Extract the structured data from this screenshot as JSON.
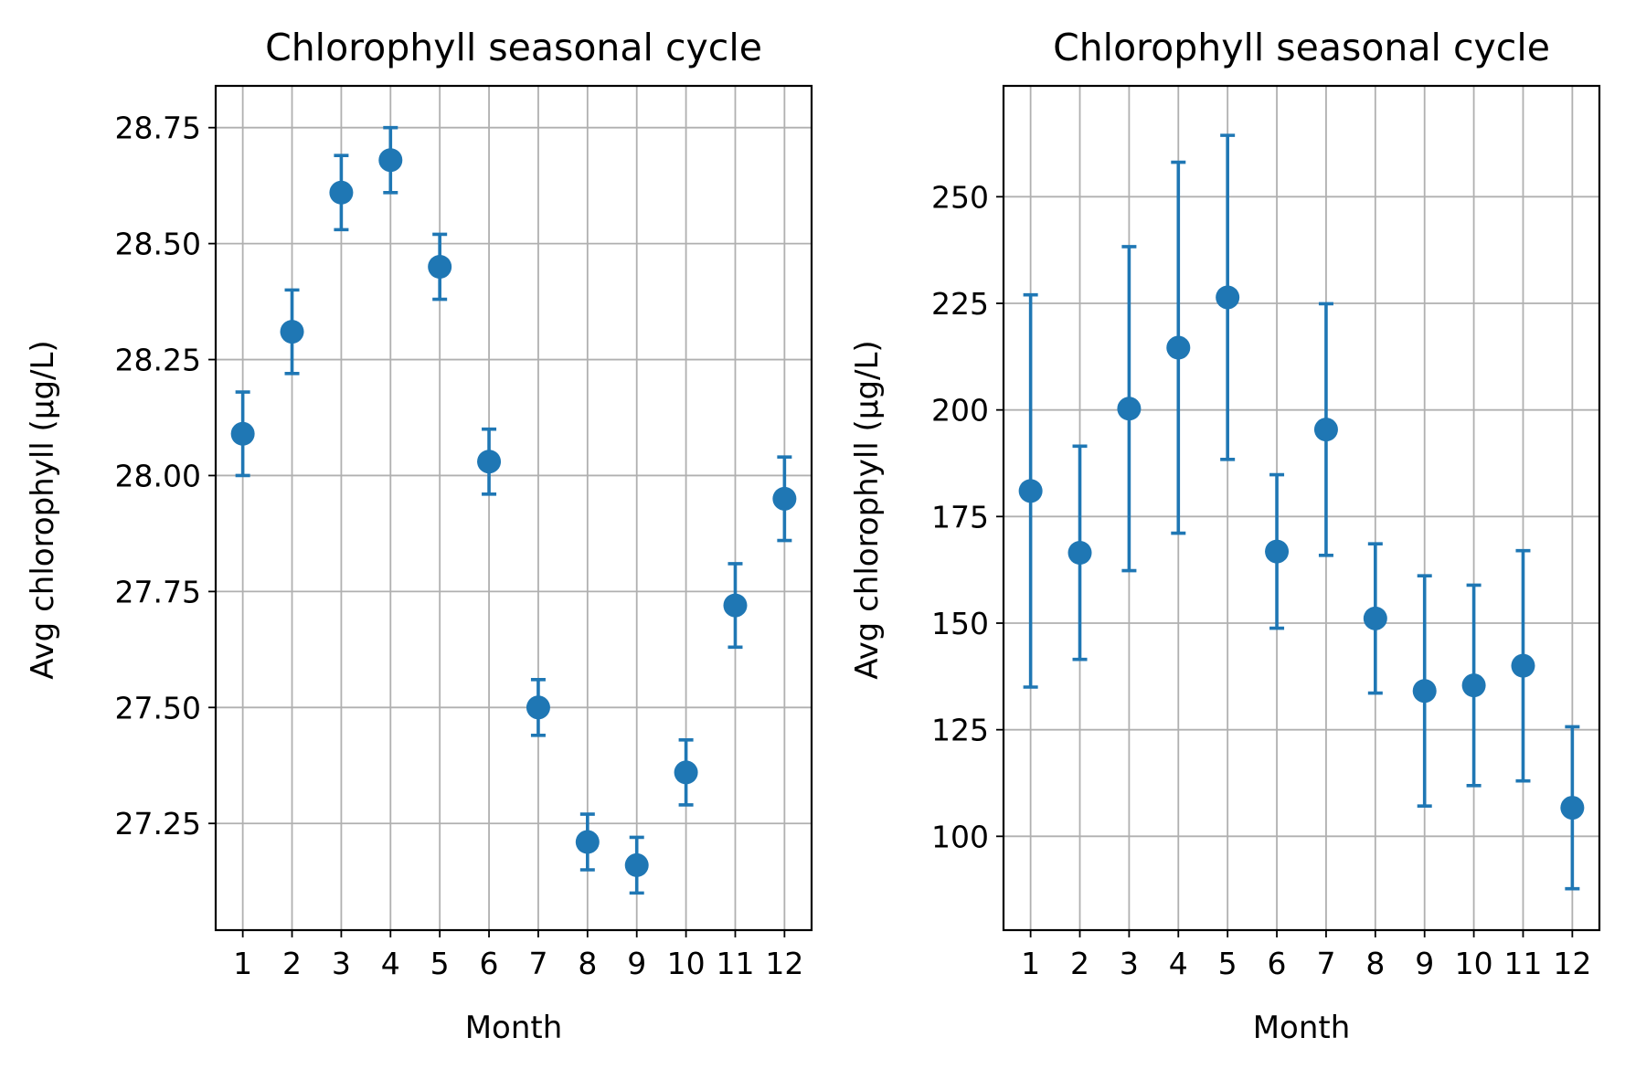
{
  "chart_data": [
    {
      "type": "scatter",
      "title": "Chlorophyll seasonal cycle",
      "xlabel": "Month",
      "ylabel": "Avg chlorophyll (µg/L)",
      "x": [
        1,
        2,
        3,
        4,
        5,
        6,
        7,
        8,
        9,
        10,
        11,
        12
      ],
      "xticks": [
        "1",
        "2",
        "3",
        "4",
        "5",
        "6",
        "7",
        "8",
        "9",
        "10",
        "11",
        "12"
      ],
      "xlim": [
        0.45,
        12.55
      ],
      "ylim": [
        27.02,
        28.84
      ],
      "yticks": [
        "27.25",
        "27.50",
        "27.75",
        "28.00",
        "28.25",
        "28.50",
        "28.75"
      ],
      "grid": true,
      "color": "#1f77b4",
      "series": [
        {
          "values": [
            28.09,
            28.31,
            28.61,
            28.68,
            28.45,
            28.03,
            27.5,
            27.21,
            27.16,
            27.36,
            27.72,
            27.95
          ],
          "errors": [
            0.09,
            0.09,
            0.08,
            0.07,
            0.07,
            0.07,
            0.06,
            0.06,
            0.06,
            0.07,
            0.09,
            0.09
          ]
        }
      ]
    },
    {
      "type": "scatter",
      "title": "Chlorophyll seasonal cycle",
      "xlabel": "Month",
      "ylabel": "Avg chlorophyll (µg/L)",
      "x": [
        1,
        2,
        3,
        4,
        5,
        6,
        7,
        8,
        9,
        10,
        11,
        12
      ],
      "xticks": [
        "1",
        "2",
        "3",
        "4",
        "5",
        "6",
        "7",
        "8",
        "9",
        "10",
        "11",
        "12"
      ],
      "xlim": [
        0.45,
        12.55
      ],
      "ylim": [
        78,
        276
      ],
      "yticks": [
        "100",
        "125",
        "150",
        "175",
        "200",
        "225",
        "250"
      ],
      "grid": true,
      "color": "#1f77b4",
      "series": [
        {
          "values": [
            181,
            166.5,
            200.3,
            214.6,
            226.4,
            166.8,
            195.4,
            151.1,
            134.1,
            135.4,
            140.0,
            106.7
          ],
          "errors": [
            46,
            25,
            38,
            43.5,
            38,
            18,
            29.5,
            17.5,
            27,
            23.5,
            27,
            19
          ]
        }
      ]
    }
  ]
}
